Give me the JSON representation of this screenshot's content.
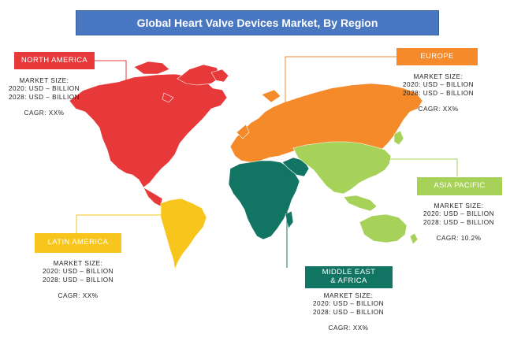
{
  "title": "Global Heart Valve Devices Market, By Region",
  "regions": {
    "north_america": {
      "name": "NORTH AMERICA",
      "size_label": "MARKET SIZE:",
      "line_2020": "2020: USD – BILLION",
      "line_2028": "2028: USD – BILLION",
      "cagr": "CAGR: XX%",
      "color": "#e8393a"
    },
    "europe": {
      "name": "EUROPE",
      "size_label": "MARKET SIZE:",
      "line_2020": "2020: USD – BILLION",
      "line_2028": "2028: USD – BILLION",
      "cagr": "CAGR: XX%",
      "color": "#f58a2a"
    },
    "asia_pacific": {
      "name": "ASIA PACIFIC",
      "size_label": "MARKET SIZE:",
      "line_2020": "2020: USD – BILLION",
      "line_2028": "2028: USD – BILLION",
      "cagr": "CAGR: 10.2%",
      "color": "#a7d25a"
    },
    "latin_america": {
      "name": "LATIN AMERICA",
      "size_label": "MARKET SIZE:",
      "line_2020": "2020: USD – BILLION",
      "line_2028": "2028: USD – BILLION",
      "cagr": "CAGR: XX%",
      "color": "#f7c51b"
    },
    "middle_east_africa": {
      "name_line1": "MIDDLE EAST",
      "name_line2": "& AFRICA",
      "size_label": "MARKET SIZE:",
      "line_2020": "2020: USD – BILLION",
      "line_2028": "2028: USD – BILLION",
      "cagr": "CAGR: XX%",
      "color": "#127462"
    }
  }
}
